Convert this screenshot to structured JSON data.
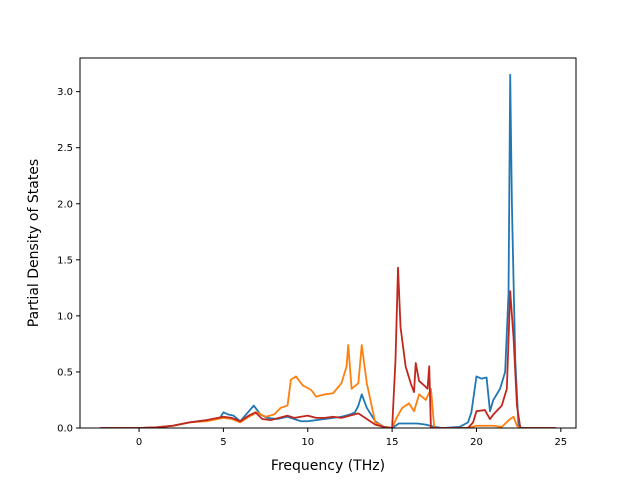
{
  "chart_data": {
    "type": "line",
    "title": "",
    "xlabel": "Frequency (THz)",
    "ylabel": "Partial Density of States",
    "xlim": [
      -3.5,
      25.9
    ],
    "ylim": [
      0,
      3.3
    ],
    "xticks": [
      0,
      5,
      10,
      15,
      20,
      25
    ],
    "yticks": [
      0.0,
      0.5,
      1.0,
      1.5,
      2.0,
      2.5,
      3.0
    ],
    "xtick_labels": [
      "0",
      "5",
      "10",
      "15",
      "20",
      "25"
    ],
    "ytick_labels": [
      "0.0",
      "0.5",
      "1.0",
      "1.5",
      "2.0",
      "2.5",
      "3.0"
    ],
    "grid": false,
    "legend": "none",
    "series": [
      {
        "color": "#1f77b4",
        "points": [
          [
            -2.3,
            0
          ],
          [
            0,
            0
          ],
          [
            1,
            0.005
          ],
          [
            2,
            0.02
          ],
          [
            3,
            0.05
          ],
          [
            4,
            0.07
          ],
          [
            4.8,
            0.09
          ],
          [
            5,
            0.14
          ],
          [
            5.3,
            0.12
          ],
          [
            5.6,
            0.11
          ],
          [
            6,
            0.06
          ],
          [
            6.4,
            0.13
          ],
          [
            6.8,
            0.2
          ],
          [
            7.2,
            0.12
          ],
          [
            7.6,
            0.09
          ],
          [
            8.2,
            0.08
          ],
          [
            8.8,
            0.1
          ],
          [
            9.2,
            0.08
          ],
          [
            9.6,
            0.06
          ],
          [
            10,
            0.06
          ],
          [
            10.5,
            0.07
          ],
          [
            11,
            0.08
          ],
          [
            11.5,
            0.09
          ],
          [
            12,
            0.1
          ],
          [
            12.5,
            0.12
          ],
          [
            12.8,
            0.14
          ],
          [
            13,
            0.2
          ],
          [
            13.2,
            0.3
          ],
          [
            13.5,
            0.18
          ],
          [
            14,
            0.06
          ],
          [
            14.5,
            0.01
          ],
          [
            15,
            0
          ],
          [
            15.4,
            0.04
          ],
          [
            16,
            0.04
          ],
          [
            16.5,
            0.04
          ],
          [
            17,
            0.03
          ],
          [
            17.5,
            0.01
          ],
          [
            18,
            0
          ],
          [
            19,
            0.01
          ],
          [
            19.5,
            0.05
          ],
          [
            19.7,
            0.14
          ],
          [
            20,
            0.46
          ],
          [
            20.3,
            0.44
          ],
          [
            20.6,
            0.45
          ],
          [
            20.8,
            0.15
          ],
          [
            21,
            0.25
          ],
          [
            21.4,
            0.35
          ],
          [
            21.7,
            0.5
          ],
          [
            21.9,
            1.2
          ],
          [
            22,
            3.15
          ],
          [
            22.1,
            2.0
          ],
          [
            22.3,
            0.6
          ],
          [
            22.5,
            0
          ],
          [
            24.7,
            0
          ]
        ]
      },
      {
        "color": "#ff7f0e",
        "points": [
          [
            -2.3,
            0
          ],
          [
            0,
            0
          ],
          [
            1,
            0.005
          ],
          [
            2,
            0.02
          ],
          [
            3,
            0.05
          ],
          [
            4,
            0.06
          ],
          [
            5,
            0.09
          ],
          [
            5.5,
            0.08
          ],
          [
            6,
            0.05
          ],
          [
            6.5,
            0.1
          ],
          [
            7,
            0.14
          ],
          [
            7.5,
            0.1
          ],
          [
            8,
            0.12
          ],
          [
            8.4,
            0.18
          ],
          [
            8.8,
            0.2
          ],
          [
            9,
            0.43
          ],
          [
            9.3,
            0.46
          ],
          [
            9.7,
            0.38
          ],
          [
            10.2,
            0.34
          ],
          [
            10.5,
            0.28
          ],
          [
            11,
            0.3
          ],
          [
            11.5,
            0.31
          ],
          [
            12,
            0.4
          ],
          [
            12.3,
            0.55
          ],
          [
            12.4,
            0.74
          ],
          [
            12.6,
            0.35
          ],
          [
            13,
            0.4
          ],
          [
            13.2,
            0.74
          ],
          [
            13.5,
            0.4
          ],
          [
            14,
            0.05
          ],
          [
            14.5,
            0.01
          ],
          [
            15,
            0
          ],
          [
            15.3,
            0.1
          ],
          [
            15.6,
            0.18
          ],
          [
            16,
            0.22
          ],
          [
            16.3,
            0.15
          ],
          [
            16.6,
            0.3
          ],
          [
            17,
            0.25
          ],
          [
            17.3,
            0.35
          ],
          [
            17.5,
            0
          ],
          [
            19.5,
            0
          ],
          [
            20,
            0.02
          ],
          [
            20.5,
            0.02
          ],
          [
            21,
            0.02
          ],
          [
            21.5,
            0.01
          ],
          [
            22,
            0.08
          ],
          [
            22.2,
            0.1
          ],
          [
            22.4,
            0.02
          ],
          [
            22.6,
            0
          ],
          [
            24.7,
            0
          ]
        ]
      },
      {
        "color": "#c0281e",
        "points": [
          [
            -2.3,
            0
          ],
          [
            0,
            0
          ],
          [
            1,
            0.005
          ],
          [
            2,
            0.02
          ],
          [
            3,
            0.05
          ],
          [
            4,
            0.07
          ],
          [
            5,
            0.1
          ],
          [
            5.5,
            0.09
          ],
          [
            6,
            0.06
          ],
          [
            6.5,
            0.11
          ],
          [
            6.9,
            0.14
          ],
          [
            7.3,
            0.08
          ],
          [
            7.8,
            0.07
          ],
          [
            8.3,
            0.09
          ],
          [
            8.8,
            0.11
          ],
          [
            9.2,
            0.09
          ],
          [
            9.6,
            0.1
          ],
          [
            10,
            0.11
          ],
          [
            10.5,
            0.09
          ],
          [
            11,
            0.09
          ],
          [
            11.5,
            0.1
          ],
          [
            12,
            0.09
          ],
          [
            12.5,
            0.11
          ],
          [
            13,
            0.13
          ],
          [
            13.4,
            0.09
          ],
          [
            14,
            0.03
          ],
          [
            14.5,
            0.01
          ],
          [
            15,
            0
          ],
          [
            15.2,
            0.6
          ],
          [
            15.35,
            1.43
          ],
          [
            15.5,
            0.9
          ],
          [
            15.8,
            0.55
          ],
          [
            16.1,
            0.4
          ],
          [
            16.3,
            0.32
          ],
          [
            16.4,
            0.58
          ],
          [
            16.6,
            0.42
          ],
          [
            16.9,
            0.38
          ],
          [
            17.1,
            0.35
          ],
          [
            17.2,
            0.55
          ],
          [
            17.3,
            0
          ],
          [
            19.5,
            0
          ],
          [
            19.8,
            0.05
          ],
          [
            20,
            0.15
          ],
          [
            20.5,
            0.16
          ],
          [
            20.8,
            0.08
          ],
          [
            21,
            0.12
          ],
          [
            21.5,
            0.2
          ],
          [
            21.8,
            0.35
          ],
          [
            22,
            1.22
          ],
          [
            22.2,
            0.8
          ],
          [
            22.4,
            0.2
          ],
          [
            22.6,
            0
          ],
          [
            24.7,
            0
          ]
        ]
      }
    ]
  }
}
